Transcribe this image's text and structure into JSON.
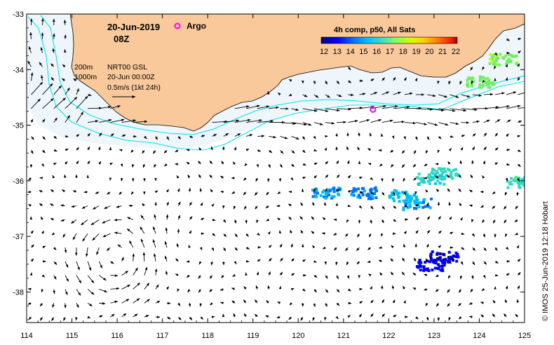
{
  "title": {
    "date": "20-Jun-2019",
    "time": "08Z",
    "argo_label": "Argo"
  },
  "legend": {
    "depth_200": "200m",
    "depth_1000": "1000m",
    "product": "NRT00 GSL",
    "product_time": "20-Jun 00:00Z",
    "scale_arrow": "0.5m/s (1kt 24h)"
  },
  "colorbar": {
    "title": "4h comp, p50, All Sats",
    "ticks": [
      "12",
      "13",
      "14",
      "15",
      "16",
      "17",
      "18",
      "19",
      "20",
      "21",
      "22"
    ],
    "min": 12,
    "max": 22
  },
  "credit": "© IMOS 25-Jun-2019 12:18 Hobart",
  "colors": {
    "land": "#f9c99b",
    "isobath": "#00e5ee",
    "argo": "#ff00ff",
    "background": "#ffffff"
  },
  "axes": {
    "lon_ticks": [
      "114",
      "115",
      "116",
      "117",
      "118",
      "119",
      "120",
      "121",
      "122",
      "123",
      "124",
      "125"
    ],
    "lat_ticks": [
      "-33",
      "-34",
      "-35",
      "-36",
      "-37",
      "-38"
    ],
    "lon_range": [
      114,
      125
    ],
    "lat_range": [
      -38.55,
      -33
    ]
  },
  "argo_float": {
    "lon": 121.65,
    "lat": -34.72
  },
  "sst_patches": [
    {
      "lon": 122.9,
      "lat": -35.95,
      "temp": 16.2
    },
    {
      "lon": 123.2,
      "lat": -35.85,
      "temp": 16.5
    },
    {
      "lon": 122.3,
      "lat": -36.25,
      "temp": 15.6
    },
    {
      "lon": 122.6,
      "lat": -36.4,
      "temp": 15.2
    },
    {
      "lon": 121.4,
      "lat": -36.2,
      "temp": 14.8
    },
    {
      "lon": 120.6,
      "lat": -36.2,
      "temp": 15.0
    },
    {
      "lon": 123.2,
      "lat": -37.35,
      "temp": 13.1
    },
    {
      "lon": 122.9,
      "lat": -37.5,
      "temp": 13.4
    },
    {
      "lon": 124.0,
      "lat": -34.2,
      "temp": 17.4
    },
    {
      "lon": 124.5,
      "lat": -33.8,
      "temp": 17.8
    },
    {
      "lon": 124.9,
      "lat": -36.0,
      "temp": 16.8
    }
  ]
}
